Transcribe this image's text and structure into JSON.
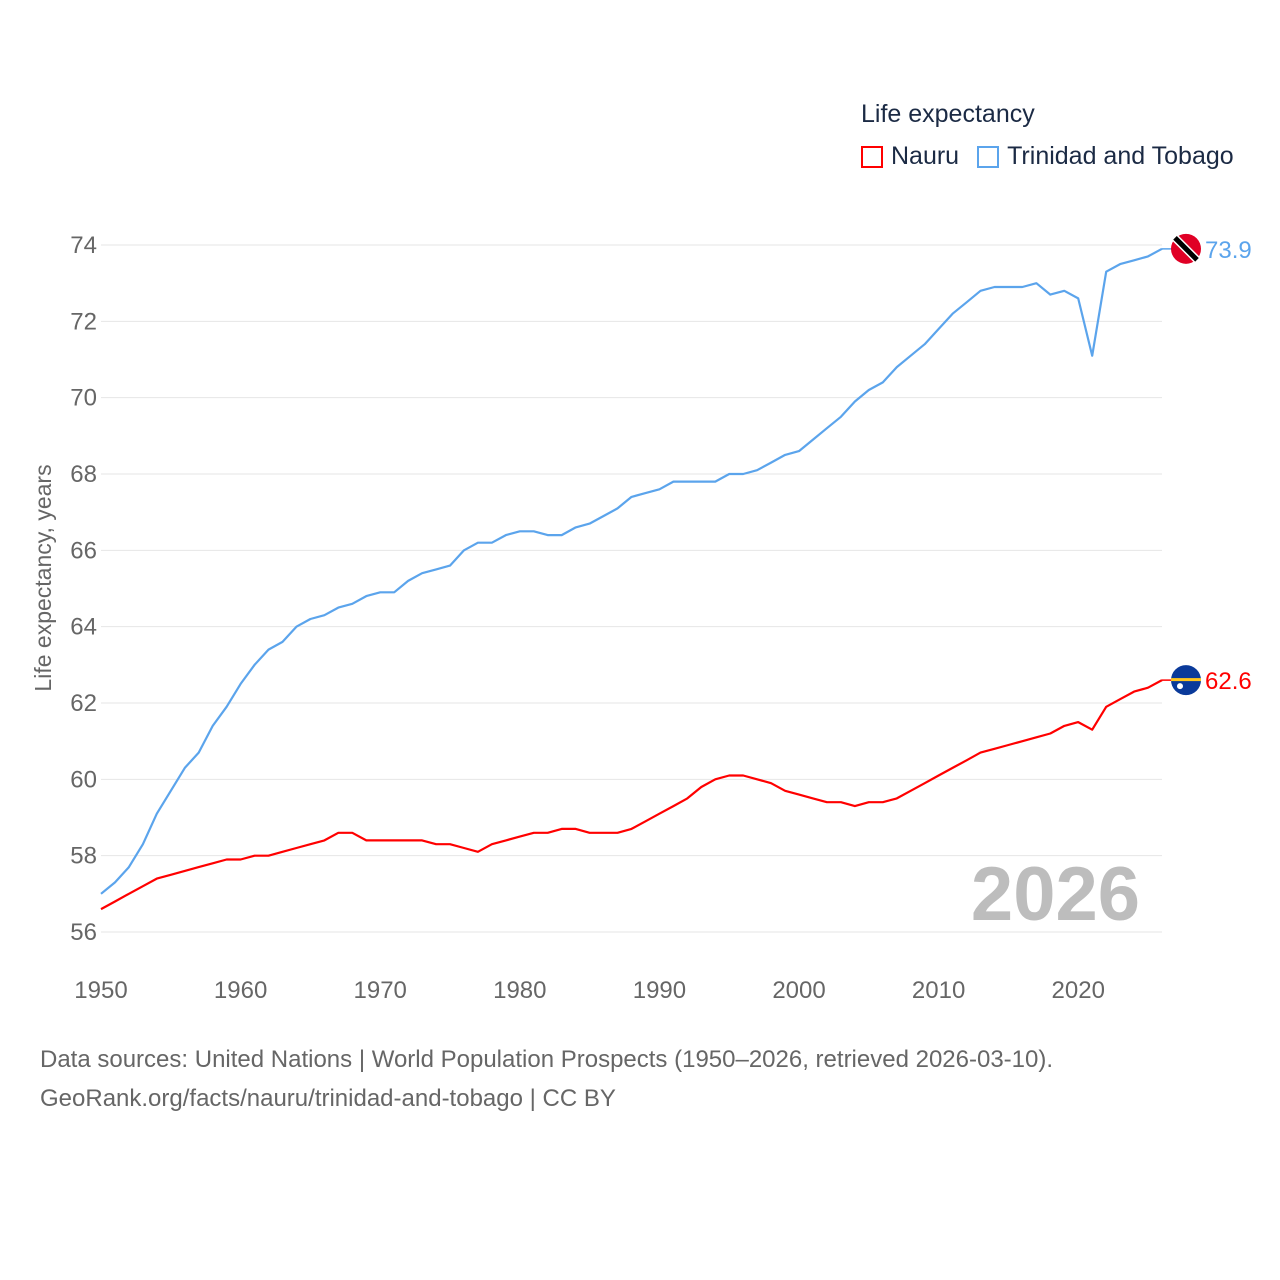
{
  "chart_data": {
    "type": "line",
    "legend_title": "Life expectancy",
    "ylabel": "Life expectancy, years",
    "xlabel": "",
    "xlim": [
      1950,
      2026
    ],
    "ylim": [
      56,
      74
    ],
    "x_ticks": [
      "1950",
      "1960",
      "1970",
      "1980",
      "1990",
      "2000",
      "2010",
      "2020"
    ],
    "y_ticks": [
      "56",
      "58",
      "60",
      "62",
      "64",
      "66",
      "68",
      "70",
      "72",
      "74"
    ],
    "grid": true,
    "legend_position": "top-right",
    "year_watermark": "2026",
    "x": [
      1950,
      1951,
      1952,
      1953,
      1954,
      1955,
      1956,
      1957,
      1958,
      1959,
      1960,
      1961,
      1962,
      1963,
      1964,
      1965,
      1966,
      1967,
      1968,
      1969,
      1970,
      1971,
      1972,
      1973,
      1974,
      1975,
      1976,
      1977,
      1978,
      1979,
      1980,
      1981,
      1982,
      1983,
      1984,
      1985,
      1986,
      1987,
      1988,
      1989,
      1990,
      1991,
      1992,
      1993,
      1994,
      1995,
      1996,
      1997,
      1998,
      1999,
      2000,
      2001,
      2002,
      2003,
      2004,
      2005,
      2006,
      2007,
      2008,
      2009,
      2010,
      2011,
      2012,
      2013,
      2014,
      2015,
      2016,
      2017,
      2018,
      2019,
      2020,
      2021,
      2022,
      2023,
      2024,
      2025,
      2026
    ],
    "series": [
      {
        "name": "Nauru",
        "color": "#ff0000",
        "end_label": "62.6",
        "values": [
          56.6,
          56.8,
          57.0,
          57.2,
          57.4,
          57.5,
          57.6,
          57.7,
          57.8,
          57.9,
          57.9,
          58.0,
          58.0,
          58.1,
          58.2,
          58.3,
          58.4,
          58.6,
          58.6,
          58.4,
          58.4,
          58.4,
          58.4,
          58.4,
          58.3,
          58.3,
          58.2,
          58.1,
          58.3,
          58.4,
          58.5,
          58.6,
          58.6,
          58.7,
          58.7,
          58.6,
          58.6,
          58.6,
          58.7,
          58.9,
          59.1,
          59.3,
          59.5,
          59.8,
          60.0,
          60.1,
          60.1,
          60.0,
          59.9,
          59.7,
          59.6,
          59.5,
          59.4,
          59.4,
          59.3,
          59.4,
          59.4,
          59.5,
          59.7,
          59.9,
          60.1,
          60.3,
          60.5,
          60.7,
          60.8,
          60.9,
          61.0,
          61.1,
          61.2,
          61.4,
          61.5,
          61.3,
          61.9,
          62.1,
          62.3,
          62.4,
          62.6
        ]
      },
      {
        "name": "Trinidad and Tobago",
        "color": "#5ba4ec",
        "end_label": "73.9",
        "values": [
          57.0,
          57.3,
          57.7,
          58.3,
          59.1,
          59.7,
          60.3,
          60.7,
          61.4,
          61.9,
          62.5,
          63.0,
          63.4,
          63.6,
          64.0,
          64.2,
          64.3,
          64.5,
          64.6,
          64.8,
          64.9,
          64.9,
          65.2,
          65.4,
          65.5,
          65.6,
          66.0,
          66.2,
          66.2,
          66.4,
          66.5,
          66.5,
          66.4,
          66.4,
          66.6,
          66.7,
          66.9,
          67.1,
          67.4,
          67.5,
          67.6,
          67.8,
          67.8,
          67.8,
          67.8,
          68.0,
          68.0,
          68.1,
          68.3,
          68.5,
          68.6,
          68.9,
          69.2,
          69.5,
          69.9,
          70.2,
          70.4,
          70.8,
          71.1,
          71.4,
          71.8,
          72.2,
          72.5,
          72.8,
          72.9,
          72.9,
          72.9,
          73.0,
          72.7,
          72.8,
          72.6,
          71.1,
          73.3,
          73.5,
          73.6,
          73.7,
          73.9
        ]
      }
    ]
  },
  "footer": {
    "line1": "Data sources: United Nations | World Population Prospects (1950–2026, retrieved 2026-03-10).",
    "line2": "GeoRank.org/facts/nauru/trinidad-and-tobago | CC BY"
  }
}
